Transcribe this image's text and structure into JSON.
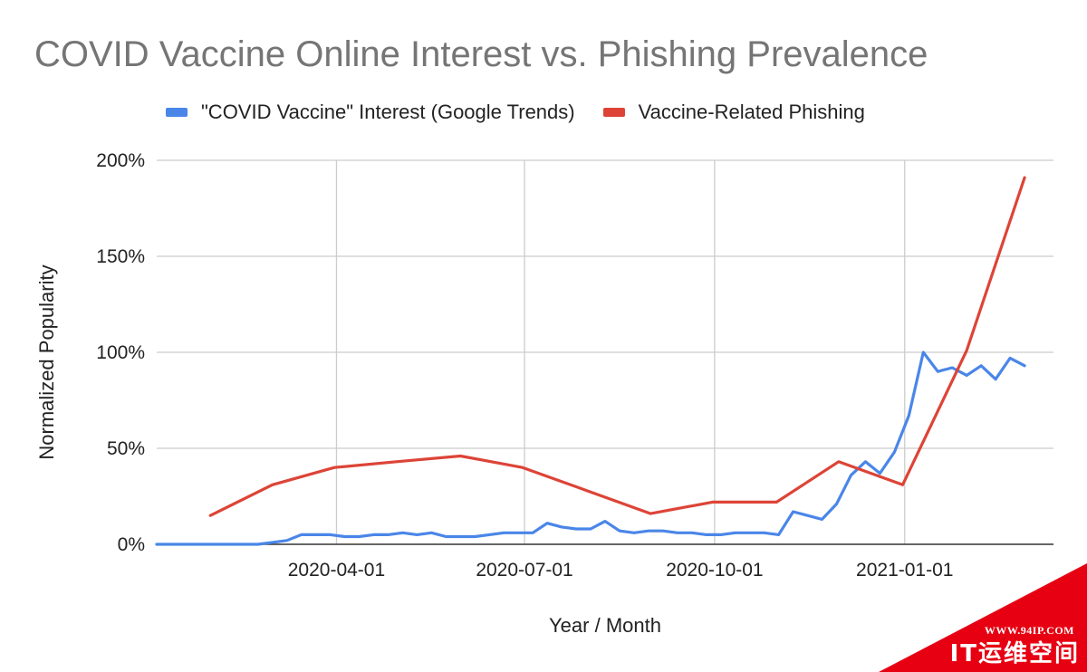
{
  "chart_data": {
    "type": "line",
    "title": "COVID Vaccine Online Interest vs. Phishing Prevalence",
    "xlabel": "Year / Month",
    "ylabel": "Normalized Popularity",
    "x_range": [
      "2020-01-05",
      "2021-03-14"
    ],
    "x_ticks": [
      "2020-04-01",
      "2020-07-01",
      "2020-10-01",
      "2021-01-01"
    ],
    "ylim": [
      0,
      200
    ],
    "y_ticks": [
      "0%",
      "50%",
      "100%",
      "150%",
      "200%"
    ],
    "y_tick_values": [
      0,
      50,
      100,
      150,
      200
    ],
    "y_unit": "%",
    "grid": true,
    "legend_position": "top",
    "series": [
      {
        "name": "\"COVID Vaccine\" Interest (Google Trends)",
        "color": "#4a86e8",
        "points": [
          [
            "2020-01-05",
            0
          ],
          [
            "2020-01-12",
            0
          ],
          [
            "2020-01-19",
            0
          ],
          [
            "2020-01-26",
            0
          ],
          [
            "2020-02-02",
            0
          ],
          [
            "2020-02-09",
            0
          ],
          [
            "2020-02-16",
            0
          ],
          [
            "2020-02-23",
            0
          ],
          [
            "2020-03-01",
            1
          ],
          [
            "2020-03-08",
            2
          ],
          [
            "2020-03-15",
            5
          ],
          [
            "2020-03-22",
            5
          ],
          [
            "2020-03-29",
            5
          ],
          [
            "2020-04-05",
            4
          ],
          [
            "2020-04-12",
            4
          ],
          [
            "2020-04-19",
            5
          ],
          [
            "2020-04-26",
            5
          ],
          [
            "2020-05-03",
            6
          ],
          [
            "2020-05-10",
            5
          ],
          [
            "2020-05-17",
            6
          ],
          [
            "2020-05-24",
            4
          ],
          [
            "2020-05-31",
            4
          ],
          [
            "2020-06-07",
            4
          ],
          [
            "2020-06-14",
            5
          ],
          [
            "2020-06-21",
            6
          ],
          [
            "2020-06-28",
            6
          ],
          [
            "2020-07-05",
            6
          ],
          [
            "2020-07-12",
            11
          ],
          [
            "2020-07-19",
            9
          ],
          [
            "2020-07-26",
            8
          ],
          [
            "2020-08-02",
            8
          ],
          [
            "2020-08-09",
            12
          ],
          [
            "2020-08-16",
            7
          ],
          [
            "2020-08-23",
            6
          ],
          [
            "2020-08-30",
            7
          ],
          [
            "2020-09-06",
            7
          ],
          [
            "2020-09-13",
            6
          ],
          [
            "2020-09-20",
            6
          ],
          [
            "2020-09-27",
            5
          ],
          [
            "2020-10-04",
            5
          ],
          [
            "2020-10-11",
            6
          ],
          [
            "2020-10-18",
            6
          ],
          [
            "2020-10-25",
            6
          ],
          [
            "2020-11-01",
            5
          ],
          [
            "2020-11-08",
            17
          ],
          [
            "2020-11-15",
            15
          ],
          [
            "2020-11-22",
            13
          ],
          [
            "2020-11-29",
            21
          ],
          [
            "2020-12-06",
            36
          ],
          [
            "2020-12-13",
            43
          ],
          [
            "2020-12-20",
            37
          ],
          [
            "2020-12-27",
            48
          ],
          [
            "2021-01-03",
            67
          ],
          [
            "2021-01-10",
            100
          ],
          [
            "2021-01-17",
            90
          ],
          [
            "2021-01-24",
            92
          ],
          [
            "2021-01-31",
            88
          ],
          [
            "2021-02-07",
            93
          ],
          [
            "2021-02-14",
            86
          ],
          [
            "2021-02-21",
            97
          ],
          [
            "2021-02-28",
            93
          ]
        ]
      },
      {
        "name": "Vaccine-Related Phishing",
        "color": "#dd4437",
        "points": [
          [
            "2020-01-31",
            15
          ],
          [
            "2020-03-01",
            31
          ],
          [
            "2020-03-31",
            40
          ],
          [
            "2020-04-30",
            43
          ],
          [
            "2020-05-31",
            46
          ],
          [
            "2020-06-30",
            40
          ],
          [
            "2020-07-31",
            28
          ],
          [
            "2020-08-31",
            16
          ],
          [
            "2020-09-30",
            22
          ],
          [
            "2020-10-31",
            22
          ],
          [
            "2020-11-30",
            43
          ],
          [
            "2020-12-31",
            31
          ],
          [
            "2021-01-31",
            101
          ],
          [
            "2021-02-28",
            191
          ]
        ]
      }
    ]
  },
  "watermark": {
    "url": "WWW.94IP.COM",
    "brand": "IT运维空间"
  }
}
